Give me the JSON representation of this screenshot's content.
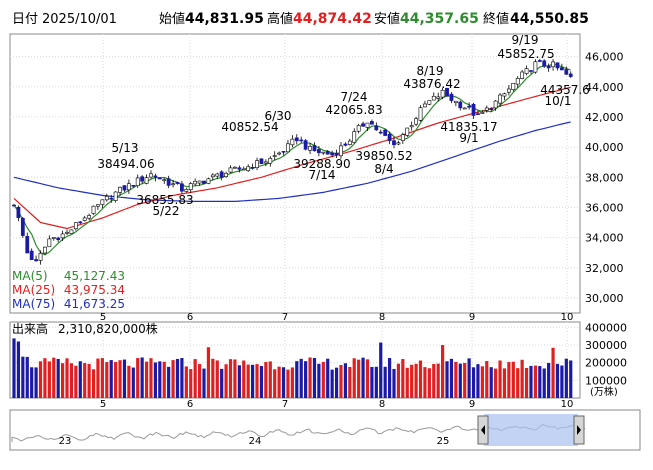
{
  "header": {
    "date_label": "日付",
    "date": "2025/10/01",
    "open_label": "始値",
    "open": "44,831.95",
    "high_label": "高値",
    "high": "44,874.42",
    "low_label": "安値",
    "low": "44,357.65",
    "close_label": "終値",
    "close": "44,550.85"
  },
  "colors": {
    "up": "#ffffff",
    "down": "#1a1aa6",
    "ma5": "#2e8b2e",
    "ma25": "#e02020",
    "ma75": "#2030c0",
    "vol_up": "#e02020",
    "vol_down": "#1a1aa6",
    "open_value": "#000000",
    "high_value": "#e02020",
    "low_value": "#2e8b2e",
    "close_value": "#000000"
  },
  "chart_data": [
    {
      "type": "candlestick",
      "ylim": [
        29000,
        47500
      ],
      "y_ticks": [
        30000,
        32000,
        34000,
        36000,
        38000,
        40000,
        42000,
        44000,
        46000
      ],
      "x_month_labels": [
        "5",
        "6",
        "7",
        "8",
        "9",
        "10"
      ],
      "legend": [
        {
          "key": "ma5",
          "label": "MA(5)",
          "value": "45,127.43"
        },
        {
          "key": "ma25",
          "label": "MA(25)",
          "value": "43,975.34"
        },
        {
          "key": "ma75",
          "label": "MA(75)",
          "value": "41,673.25"
        }
      ],
      "annotations": [
        {
          "value": "5/13",
          "price": "38494.06",
          "at": 31
        },
        {
          "value": "5/22",
          "price": "36855.83",
          "at": 38
        },
        {
          "value": "6/30",
          "price": "40852.54",
          "at": 64
        },
        {
          "value": "7/14",
          "price": "39288.90",
          "at": 72
        },
        {
          "value": "7/24",
          "price": "42065.83",
          "at": 80
        },
        {
          "value": "8/4",
          "price": "39850.52",
          "at": 86
        },
        {
          "value": "8/19",
          "price": "43876.42",
          "at": 97
        },
        {
          "value": "9/1",
          "price": "41835.17",
          "at": 105
        },
        {
          "value": "9/19",
          "price": "45852.75",
          "at": 118
        },
        {
          "value": "10/1",
          "price": "44357.6",
          "at": 126
        }
      ],
      "close_anchors": [
        [
          0,
          36300
        ],
        [
          3,
          33000
        ],
        [
          5,
          32300
        ],
        [
          8,
          33900
        ],
        [
          12,
          34300
        ],
        [
          17,
          35600
        ],
        [
          22,
          36800
        ],
        [
          27,
          37600
        ],
        [
          31,
          38200
        ],
        [
          34,
          37800
        ],
        [
          38,
          37200
        ],
        [
          43,
          37800
        ],
        [
          48,
          38300
        ],
        [
          53,
          38700
        ],
        [
          58,
          39200
        ],
        [
          62,
          40000
        ],
        [
          64,
          40600
        ],
        [
          67,
          39800
        ],
        [
          72,
          39500
        ],
        [
          75,
          40200
        ],
        [
          78,
          41200
        ],
        [
          80,
          41800
        ],
        [
          83,
          40900
        ],
        [
          86,
          40100
        ],
        [
          90,
          41600
        ],
        [
          93,
          42800
        ],
        [
          97,
          43600
        ],
        [
          100,
          43000
        ],
        [
          103,
          42500
        ],
        [
          105,
          42000
        ],
        [
          108,
          42700
        ],
        [
          111,
          43500
        ],
        [
          114,
          44500
        ],
        [
          118,
          45500
        ],
        [
          122,
          45400
        ],
        [
          124,
          45000
        ],
        [
          126,
          44550
        ]
      ],
      "ma25_anchors": [
        [
          0,
          36600
        ],
        [
          6,
          35000
        ],
        [
          12,
          34600
        ],
        [
          20,
          35300
        ],
        [
          28,
          36200
        ],
        [
          36,
          36800
        ],
        [
          46,
          37300
        ],
        [
          56,
          38000
        ],
        [
          66,
          38900
        ],
        [
          76,
          39700
        ],
        [
          86,
          40600
        ],
        [
          96,
          41600
        ],
        [
          106,
          42400
        ],
        [
          116,
          43200
        ],
        [
          126,
          43975
        ]
      ],
      "ma75_anchors": [
        [
          0,
          38000
        ],
        [
          10,
          37300
        ],
        [
          20,
          36800
        ],
        [
          30,
          36500
        ],
        [
          40,
          36400
        ],
        [
          50,
          36400
        ],
        [
          60,
          36600
        ],
        [
          70,
          37000
        ],
        [
          80,
          37600
        ],
        [
          90,
          38400
        ],
        [
          100,
          39400
        ],
        [
          110,
          40400
        ],
        [
          118,
          41100
        ],
        [
          126,
          41673
        ]
      ]
    },
    {
      "type": "bar",
      "title": "出来高",
      "total": "2,310,820,000株",
      "unit": "(万株)",
      "ylim": [
        0,
        430000
      ],
      "y_ticks": [
        "400000",
        "300000",
        "200000",
        "100000"
      ],
      "x_month_labels": [
        "5",
        "6",
        "7",
        "8",
        "9",
        "10"
      ]
    }
  ],
  "navigator": {
    "labels": [
      "23",
      "24",
      "25"
    ]
  }
}
